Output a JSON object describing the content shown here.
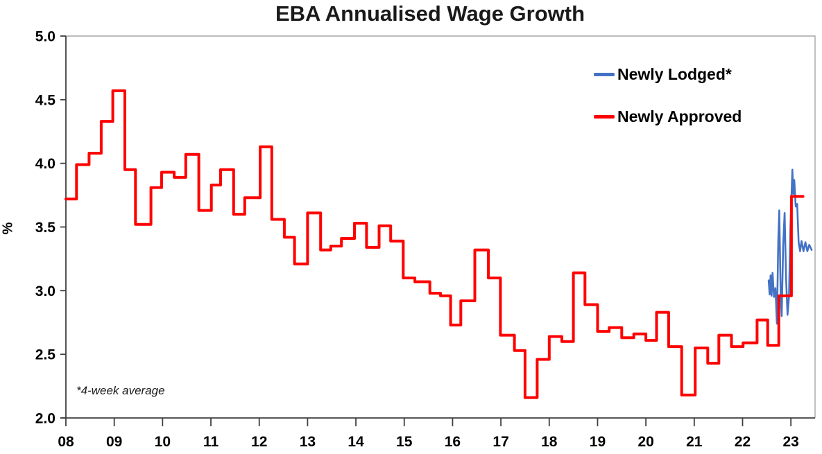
{
  "chart_data": {
    "type": "line",
    "title": "EBA Annualised Wage Growth",
    "ylabel": "%",
    "footnote": "*4-week average",
    "grid": false,
    "legend_position": "inside-top-right",
    "x_axis": {
      "range": [
        2008,
        2023.5
      ],
      "ticks": [
        2008,
        2009,
        2010,
        2011,
        2012,
        2013,
        2014,
        2015,
        2016,
        2017,
        2018,
        2019,
        2020,
        2021,
        2022,
        2023
      ],
      "tick_labels": [
        "08",
        "09",
        "10",
        "11",
        "12",
        "13",
        "14",
        "15",
        "16",
        "17",
        "18",
        "19",
        "20",
        "21",
        "22",
        "23"
      ]
    },
    "y_axis": {
      "range": [
        2.0,
        5.0
      ],
      "ticks": [
        2.0,
        2.5,
        3.0,
        3.5,
        4.0,
        4.5,
        5.0
      ],
      "tick_labels": [
        "2.0",
        "2.5",
        "3.0",
        "3.5",
        "4.0",
        "4.5",
        "5.0"
      ],
      "unit": "%"
    },
    "series": [
      {
        "name": "Newly Lodged*",
        "color": "#4472C4",
        "line_style": "linear",
        "line_width": 2.6,
        "points": [
          [
            2022.54,
            3.08
          ],
          [
            2022.56,
            2.97
          ],
          [
            2022.58,
            3.12
          ],
          [
            2022.6,
            2.96
          ],
          [
            2022.62,
            3.14
          ],
          [
            2022.65,
            2.95
          ],
          [
            2022.68,
            3.02
          ],
          [
            2022.71,
            2.74
          ],
          [
            2022.74,
            3.4
          ],
          [
            2022.76,
            3.63
          ],
          [
            2022.79,
            2.95
          ],
          [
            2022.81,
            2.8
          ],
          [
            2022.84,
            3.35
          ],
          [
            2022.87,
            3.61
          ],
          [
            2022.9,
            3.1
          ],
          [
            2022.93,
            2.81
          ],
          [
            2022.96,
            2.95
          ],
          [
            2022.99,
            3.5
          ],
          [
            2023.03,
            3.95
          ],
          [
            2023.05,
            3.76
          ],
          [
            2023.07,
            3.87
          ],
          [
            2023.1,
            3.66
          ],
          [
            2023.13,
            3.68
          ],
          [
            2023.16,
            3.38
          ],
          [
            2023.19,
            3.31
          ],
          [
            2023.22,
            3.39
          ],
          [
            2023.26,
            3.31
          ],
          [
            2023.3,
            3.38
          ],
          [
            2023.34,
            3.31
          ],
          [
            2023.38,
            3.36
          ],
          [
            2023.43,
            3.32
          ]
        ]
      },
      {
        "name": "Newly Approved",
        "color": "#FF0000",
        "line_style": "step-after",
        "line_width": 4,
        "end_x": 2023.25,
        "points": [
          [
            2008.0,
            3.72
          ],
          [
            2008.22,
            3.99
          ],
          [
            2008.48,
            4.08
          ],
          [
            2008.73,
            4.33
          ],
          [
            2008.97,
            4.57
          ],
          [
            2009.22,
            3.95
          ],
          [
            2009.44,
            3.52
          ],
          [
            2009.76,
            3.81
          ],
          [
            2009.98,
            3.93
          ],
          [
            2010.24,
            3.89
          ],
          [
            2010.48,
            4.07
          ],
          [
            2010.75,
            3.63
          ],
          [
            2011.01,
            3.83
          ],
          [
            2011.2,
            3.95
          ],
          [
            2011.47,
            3.6
          ],
          [
            2011.7,
            3.73
          ],
          [
            2012.02,
            4.13
          ],
          [
            2012.26,
            3.56
          ],
          [
            2012.52,
            3.42
          ],
          [
            2012.73,
            3.21
          ],
          [
            2013.0,
            3.61
          ],
          [
            2013.27,
            3.32
          ],
          [
            2013.48,
            3.35
          ],
          [
            2013.7,
            3.41
          ],
          [
            2013.97,
            3.53
          ],
          [
            2014.22,
            3.34
          ],
          [
            2014.48,
            3.51
          ],
          [
            2014.72,
            3.39
          ],
          [
            2014.98,
            3.1
          ],
          [
            2015.22,
            3.07
          ],
          [
            2015.53,
            2.98
          ],
          [
            2015.75,
            2.96
          ],
          [
            2015.96,
            2.73
          ],
          [
            2016.17,
            2.92
          ],
          [
            2016.46,
            3.32
          ],
          [
            2016.74,
            3.1
          ],
          [
            2016.99,
            2.65
          ],
          [
            2017.28,
            2.53
          ],
          [
            2017.5,
            2.16
          ],
          [
            2017.75,
            2.46
          ],
          [
            2018.0,
            2.64
          ],
          [
            2018.26,
            2.6
          ],
          [
            2018.5,
            3.14
          ],
          [
            2018.74,
            2.89
          ],
          [
            2019.0,
            2.68
          ],
          [
            2019.24,
            2.71
          ],
          [
            2019.5,
            2.63
          ],
          [
            2019.75,
            2.66
          ],
          [
            2020.0,
            2.61
          ],
          [
            2020.22,
            2.83
          ],
          [
            2020.47,
            2.56
          ],
          [
            2020.74,
            2.18
          ],
          [
            2021.02,
            2.55
          ],
          [
            2021.28,
            2.43
          ],
          [
            2021.51,
            2.65
          ],
          [
            2021.77,
            2.56
          ],
          [
            2022.01,
            2.59
          ],
          [
            2022.3,
            2.77
          ],
          [
            2022.52,
            2.57
          ],
          [
            2022.75,
            2.96
          ],
          [
            2023.01,
            3.74
          ]
        ]
      }
    ]
  }
}
